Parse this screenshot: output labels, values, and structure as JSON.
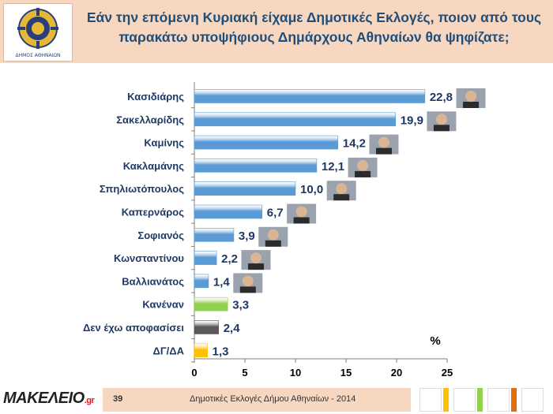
{
  "header": {
    "title_line1": "Εάν την επόμενη Κυριακή είχαμε Δημοτικές Εκλογές, ποιον από τους",
    "title_line2": "παρακάτω υποψήφιους Δημάρχους Αθηναίων θα ψηφίζατε;",
    "logo_caption": "ΔΗΜΟΣ ΑΘΗΝΑΙΩΝ"
  },
  "footer": {
    "page_number": "39",
    "text": "Δημοτικές Εκλογές Δήμου Αθηναίων - 2014",
    "brand_main": "MAKEΛEIO",
    "brand_suffix": ".gr"
  },
  "colors": {
    "candidate_bar": "#5b9bd5",
    "none_bar": "#92d050",
    "undecided_bar": "#595959",
    "no_answer_bar": "#ffc000",
    "title": "#1f4e79",
    "header_bg": "#f8d7c1"
  },
  "chart_data": {
    "type": "bar",
    "orientation": "horizontal",
    "categories": [
      "Κασιδιάρης",
      "Σακελλαρίδης",
      "Καμίνης",
      "Κακλαμάνης",
      "Σπηλιωτόπουλος",
      "Καπερνάρος",
      "Σοφιανός",
      "Κωνσταντίνου",
      "Βαλλιανάτος",
      "Κανέναν",
      "Δεν έχω αποφασίσει",
      "ΔΓ/ΔΑ"
    ],
    "values": [
      22.8,
      19.9,
      14.2,
      12.1,
      10.0,
      6.7,
      3.9,
      2.2,
      1.4,
      3.3,
      2.4,
      1.3
    ],
    "value_labels": [
      "22,8",
      "19,9",
      "14,2",
      "12,1",
      "10,0",
      "6,7",
      "3,9",
      "2,2",
      "1,4",
      "3,3",
      "2,4",
      "1,3"
    ],
    "bar_colors": [
      "#5b9bd5",
      "#5b9bd5",
      "#5b9bd5",
      "#5b9bd5",
      "#5b9bd5",
      "#5b9bd5",
      "#5b9bd5",
      "#5b9bd5",
      "#5b9bd5",
      "#92d050",
      "#595959",
      "#ffc000"
    ],
    "has_photo": [
      true,
      true,
      true,
      true,
      true,
      true,
      true,
      true,
      true,
      false,
      false,
      false
    ],
    "xlim": [
      0,
      25
    ],
    "xticks": [
      0,
      5,
      10,
      15,
      20,
      25
    ],
    "unit": "%",
    "grid": false
  }
}
